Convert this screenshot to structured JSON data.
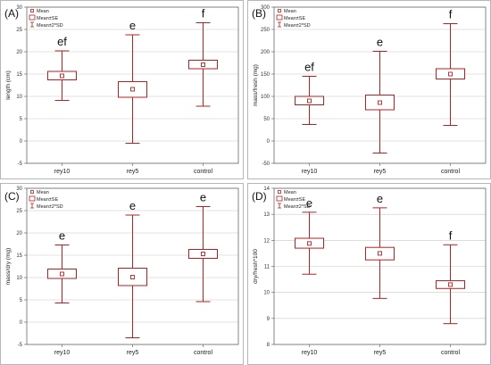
{
  "chart_data": [
    {
      "panel_label": "(A)",
      "type": "box",
      "ylabel": "length (cm)",
      "ylim": [
        -5,
        30
      ],
      "yticks": [
        -5,
        0,
        5,
        10,
        15,
        20,
        25,
        30
      ],
      "categories": [
        "rey10",
        "rey5",
        "control"
      ],
      "mean": [
        14.6,
        11.6,
        17.1
      ],
      "mean_minus_se": [
        13.7,
        9.8,
        16.2
      ],
      "mean_plus_se": [
        15.6,
        13.3,
        18.1
      ],
      "mean_minus_2sd": [
        9.1,
        -0.5,
        7.8
      ],
      "mean_plus_2sd": [
        20.2,
        23.8,
        26.5
      ],
      "significance": [
        "ef",
        "e",
        "f"
      ],
      "legend": [
        "Mean",
        "Mean±SE",
        "Mean±2*SD"
      ],
      "grid": true
    },
    {
      "panel_label": "(B)",
      "type": "box",
      "ylabel": "mass/fresh (mg)",
      "ylim": [
        -50,
        300
      ],
      "yticks": [
        -50,
        0,
        50,
        100,
        150,
        200,
        250,
        300
      ],
      "categories": [
        "rey10",
        "rey5",
        "control"
      ],
      "mean": [
        90,
        86,
        150
      ],
      "mean_minus_se": [
        81,
        70,
        139
      ],
      "mean_plus_se": [
        100,
        103,
        162
      ],
      "mean_minus_2sd": [
        37,
        -27,
        35
      ],
      "mean_plus_2sd": [
        145,
        201,
        263
      ],
      "significance": [
        "ef",
        "e",
        "f"
      ],
      "legend": [
        "Mean",
        "Mean±SE",
        "Mean±2*SD"
      ],
      "grid": true
    },
    {
      "panel_label": "(C)",
      "type": "box",
      "ylabel": "mass/dry (mg)",
      "ylim": [
        -5,
        30
      ],
      "yticks": [
        -5,
        0,
        5,
        10,
        15,
        20,
        25,
        30
      ],
      "categories": [
        "rey10",
        "rey5",
        "control"
      ],
      "mean": [
        10.8,
        10.1,
        15.3
      ],
      "mean_minus_se": [
        9.8,
        8.2,
        14.3
      ],
      "mean_plus_se": [
        11.9,
        12.1,
        16.3
      ],
      "mean_minus_2sd": [
        4.3,
        -3.5,
        4.6
      ],
      "mean_plus_2sd": [
        17.3,
        24.0,
        25.9
      ],
      "significance": [
        "e",
        "e",
        "e"
      ],
      "legend": [
        "Mean",
        "Mean±SE",
        "Mean±2*SD"
      ],
      "grid": true
    },
    {
      "panel_label": "(D)",
      "type": "box",
      "ylabel": "dry/fresh*100",
      "ylim": [
        8,
        14
      ],
      "yticks": [
        8,
        9,
        10,
        11,
        12,
        13,
        14
      ],
      "categories": [
        "rey10",
        "rey5",
        "control"
      ],
      "mean": [
        11.88,
        11.5,
        10.3
      ],
      "mean_minus_se": [
        11.7,
        11.25,
        10.15
      ],
      "mean_plus_se": [
        12.08,
        11.73,
        10.45
      ],
      "mean_minus_2sd": [
        10.7,
        9.77,
        8.8
      ],
      "mean_plus_2sd": [
        13.08,
        13.25,
        11.83
      ],
      "significance": [
        "e",
        "e",
        "f"
      ],
      "legend": [
        "Mean",
        "Mean±SE",
        "Mean±2*SD"
      ],
      "grid": true
    }
  ],
  "colors": {
    "series": "#b22222",
    "grid": "#c8c8c8",
    "axis": "#555555",
    "frame": "#999999"
  }
}
